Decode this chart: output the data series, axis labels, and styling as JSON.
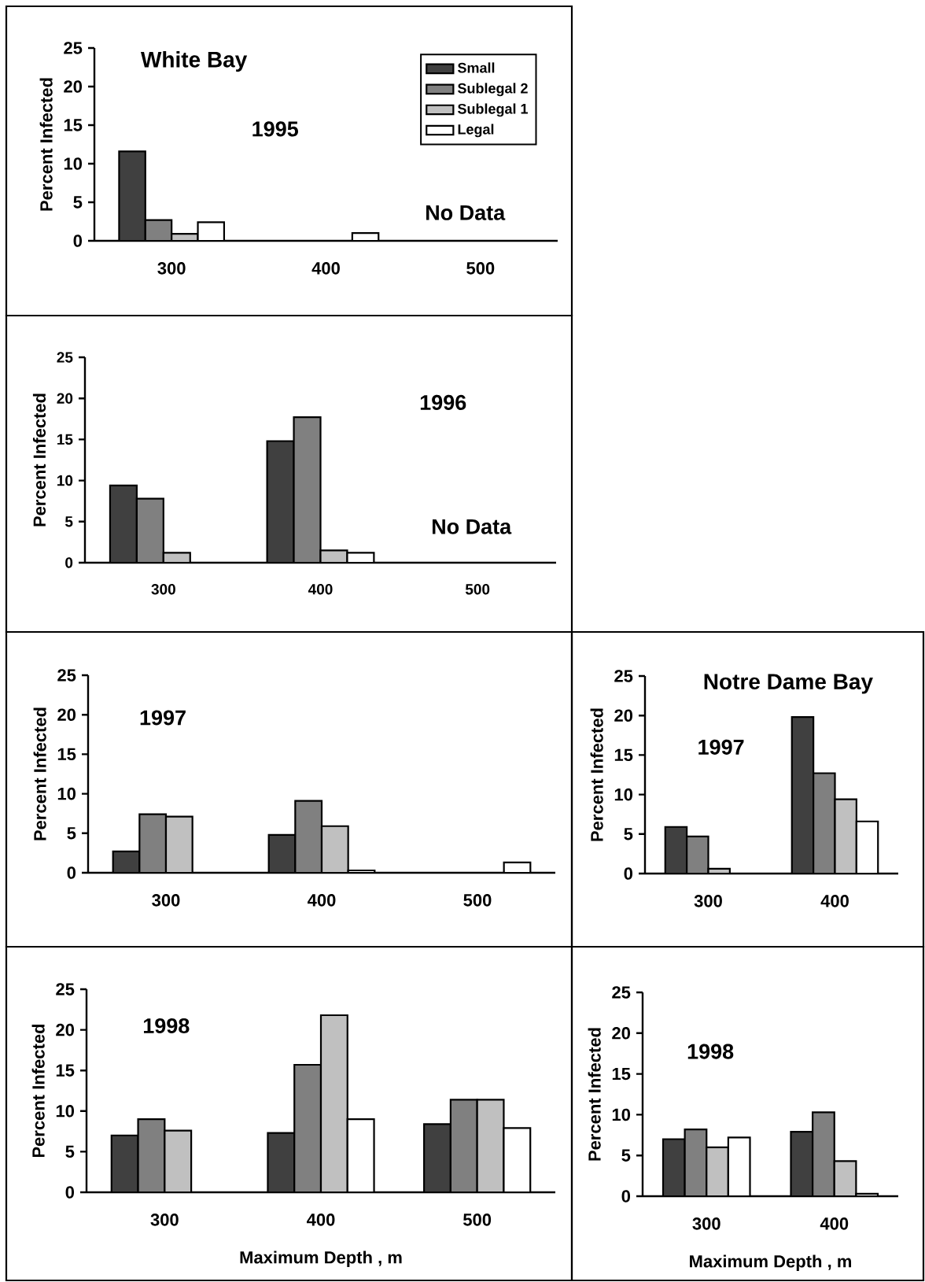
{
  "chart_data": [
    {
      "type": "bar",
      "title": "White Bay",
      "ylabel": "Percent Infected",
      "categories": [
        "300",
        "400",
        "500"
      ],
      "ylim": [
        0,
        25
      ],
      "yticks": [
        0,
        5,
        10,
        15,
        20,
        25
      ],
      "legend": "top right",
      "annotations": [
        "1995",
        "No Data"
      ],
      "series": [
        {
          "name": "Small",
          "color": "#404040",
          "values": [
            11.6,
            null,
            null
          ]
        },
        {
          "name": "Sublegal 2",
          "color": "#808080",
          "values": [
            2.7,
            null,
            null
          ]
        },
        {
          "name": "Sublegal 1",
          "color": "#c0c0c0",
          "values": [
            0.9,
            null,
            null
          ]
        },
        {
          "name": "Legal",
          "color": "#ffffff",
          "values": [
            2.4,
            1.0,
            null
          ]
        }
      ]
    },
    {
      "type": "bar",
      "ylabel": "Percent Infected",
      "categories": [
        "300",
        "400",
        "500"
      ],
      "ylim": [
        0,
        25
      ],
      "yticks": [
        0,
        5,
        10,
        15,
        20,
        25
      ],
      "annotations": [
        "1996",
        "No Data"
      ],
      "series": [
        {
          "color": "#404040",
          "values": [
            9.4,
            14.8,
            null
          ]
        },
        {
          "color": "#808080",
          "values": [
            7.8,
            17.7,
            null
          ]
        },
        {
          "color": "#c0c0c0",
          "values": [
            1.2,
            1.5,
            null
          ]
        },
        {
          "color": "#ffffff",
          "values": [
            null,
            1.2,
            null
          ]
        }
      ]
    },
    {
      "type": "bar",
      "ylabel": "Percent Infected",
      "categories": [
        "300",
        "400",
        "500"
      ],
      "ylim": [
        0,
        25
      ],
      "yticks": [
        0,
        5,
        10,
        15,
        20,
        25
      ],
      "annotations": [
        "1997"
      ],
      "series": [
        {
          "color": "#404040",
          "values": [
            2.7,
            4.8,
            null
          ]
        },
        {
          "color": "#808080",
          "values": [
            7.4,
            9.1,
            null
          ]
        },
        {
          "color": "#c0c0c0",
          "values": [
            7.1,
            5.9,
            null
          ]
        },
        {
          "color": "#ffffff",
          "values": [
            null,
            0.3,
            1.3
          ]
        }
      ]
    },
    {
      "type": "bar",
      "title": "Notre Dame Bay",
      "ylabel": "Percent Infected",
      "categories": [
        "300",
        "400"
      ],
      "ylim": [
        0,
        25
      ],
      "yticks": [
        0,
        5,
        10,
        15,
        20,
        25
      ],
      "annotations": [
        "1997"
      ],
      "series": [
        {
          "color": "#404040",
          "values": [
            5.9,
            19.8
          ]
        },
        {
          "color": "#808080",
          "values": [
            4.7,
            12.7
          ]
        },
        {
          "color": "#c0c0c0",
          "values": [
            0.6,
            9.4
          ]
        },
        {
          "color": "#ffffff",
          "values": [
            null,
            6.6
          ]
        }
      ]
    },
    {
      "type": "bar",
      "xlabel": "Maximum Depth , m",
      "ylabel": "Percent Infected",
      "categories": [
        "300",
        "400",
        "500"
      ],
      "ylim": [
        0,
        25
      ],
      "yticks": [
        0,
        5,
        10,
        15,
        20,
        25
      ],
      "annotations": [
        "1998"
      ],
      "series": [
        {
          "color": "#404040",
          "values": [
            7.0,
            7.3,
            8.4
          ]
        },
        {
          "color": "#808080",
          "values": [
            9.0,
            15.7,
            11.4
          ]
        },
        {
          "color": "#c0c0c0",
          "values": [
            7.6,
            21.8,
            11.4
          ]
        },
        {
          "color": "#ffffff",
          "values": [
            null,
            9.0,
            7.9
          ]
        }
      ]
    },
    {
      "type": "bar",
      "xlabel": "Maximum Depth , m",
      "ylabel": "Percent Infected",
      "categories": [
        "300",
        "400"
      ],
      "ylim": [
        0,
        25
      ],
      "yticks": [
        0,
        5,
        10,
        15,
        20,
        25
      ],
      "annotations": [
        "1998"
      ],
      "series": [
        {
          "color": "#404040",
          "values": [
            7.0,
            7.9
          ]
        },
        {
          "color": "#808080",
          "values": [
            8.2,
            10.3
          ]
        },
        {
          "color": "#c0c0c0",
          "values": [
            6.0,
            4.3
          ]
        },
        {
          "color": "#ffffff",
          "values": [
            7.2,
            0.3
          ]
        }
      ]
    }
  ]
}
